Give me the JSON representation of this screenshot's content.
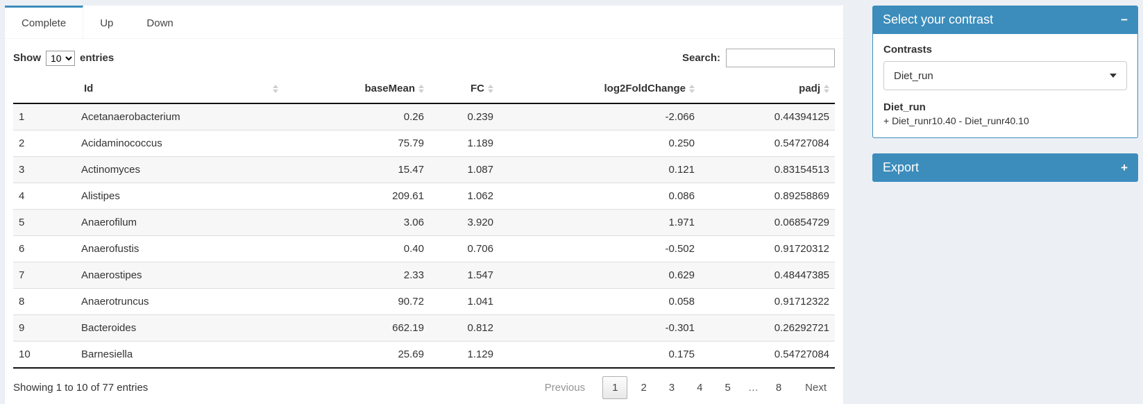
{
  "tabs": [
    {
      "label": "Complete",
      "active": true
    },
    {
      "label": "Up",
      "active": false
    },
    {
      "label": "Down",
      "active": false
    }
  ],
  "length_control": {
    "prefix": "Show",
    "value": "10",
    "suffix": "entries"
  },
  "search": {
    "label": "Search:",
    "value": ""
  },
  "table": {
    "columns": [
      "Id",
      "baseMean",
      "FC",
      "log2FoldChange",
      "padj"
    ],
    "rows": [
      {
        "num": "1",
        "id": "Acetanaerobacterium",
        "baseMean": "0.26",
        "fc": "0.239",
        "log2fc": "-2.066",
        "padj": "0.44394125"
      },
      {
        "num": "2",
        "id": "Acidaminococcus",
        "baseMean": "75.79",
        "fc": "1.189",
        "log2fc": "0.250",
        "padj": "0.54727084"
      },
      {
        "num": "3",
        "id": "Actinomyces",
        "baseMean": "15.47",
        "fc": "1.087",
        "log2fc": "0.121",
        "padj": "0.83154513"
      },
      {
        "num": "4",
        "id": "Alistipes",
        "baseMean": "209.61",
        "fc": "1.062",
        "log2fc": "0.086",
        "padj": "0.89258869"
      },
      {
        "num": "5",
        "id": "Anaerofilum",
        "baseMean": "3.06",
        "fc": "3.920",
        "log2fc": "1.971",
        "padj": "0.06854729"
      },
      {
        "num": "6",
        "id": "Anaerofustis",
        "baseMean": "0.40",
        "fc": "0.706",
        "log2fc": "-0.502",
        "padj": "0.91720312"
      },
      {
        "num": "7",
        "id": "Anaerostipes",
        "baseMean": "2.33",
        "fc": "1.547",
        "log2fc": "0.629",
        "padj": "0.48447385"
      },
      {
        "num": "8",
        "id": "Anaerotruncus",
        "baseMean": "90.72",
        "fc": "1.041",
        "log2fc": "0.058",
        "padj": "0.91712322"
      },
      {
        "num": "9",
        "id": "Bacteroides",
        "baseMean": "662.19",
        "fc": "0.812",
        "log2fc": "-0.301",
        "padj": "0.26292721"
      },
      {
        "num": "10",
        "id": "Barnesiella",
        "baseMean": "25.69",
        "fc": "1.129",
        "log2fc": "0.175",
        "padj": "0.54727084"
      }
    ],
    "info": "Showing 1 to 10 of 77 entries",
    "pagination": {
      "previous": "Previous",
      "pages": [
        "1",
        "2",
        "3",
        "4",
        "5",
        "…",
        "8"
      ],
      "current": "1",
      "next": "Next"
    }
  },
  "contrast_panel": {
    "title": "Select your contrast",
    "collapse_icon": "−",
    "contrasts_label": "Contrasts",
    "selected_contrast": "Diet_run",
    "contrast_name": "Diet_run",
    "contrast_formula": "+ Diet_runr10.40 - Diet_runr40.10"
  },
  "export_panel": {
    "title": "Export",
    "expand_icon": "+"
  },
  "colors": {
    "accent": "#3c8dbc",
    "body_bg": "#ecf0f5"
  }
}
